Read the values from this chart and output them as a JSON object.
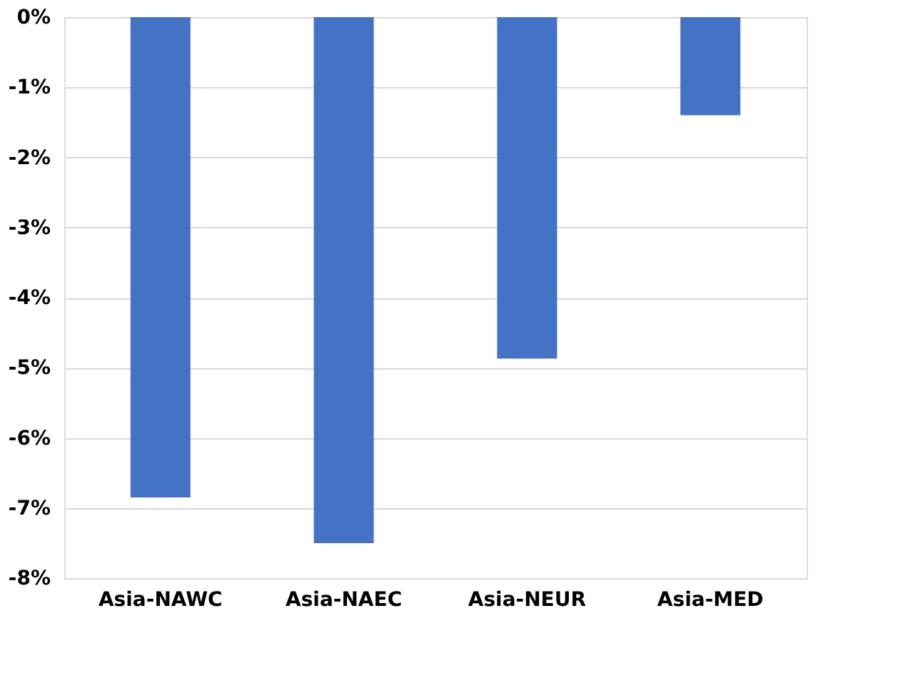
{
  "chart_data": {
    "type": "bar",
    "categories": [
      "Asia-NAWC",
      "Asia-NAEC",
      "Asia-NEUR",
      "Asia-MED"
    ],
    "values": [
      -6.85,
      -7.5,
      -4.87,
      -1.4
    ],
    "color": "#4472c4",
    "ylim": [
      -8,
      0
    ],
    "yticks": [
      {
        "value": 0,
        "label": "0%"
      },
      {
        "value": -1,
        "label": "-1%"
      },
      {
        "value": -2,
        "label": "-2%"
      },
      {
        "value": -3,
        "label": "-3%"
      },
      {
        "value": -4,
        "label": "-4%"
      },
      {
        "value": -5,
        "label": "-5%"
      },
      {
        "value": -6,
        "label": "-6%"
      },
      {
        "value": -7,
        "label": "-7%"
      },
      {
        "value": -8,
        "label": "-8%"
      }
    ],
    "grid": "y"
  }
}
